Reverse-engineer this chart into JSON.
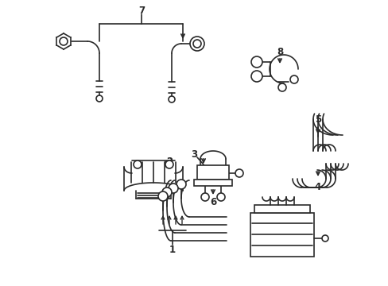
{
  "background_color": "#ffffff",
  "line_color": "#2a2a2a",
  "line_width": 1.2,
  "label_fontsize": 8.5,
  "fig_w": 4.89,
  "fig_h": 3.6,
  "dpi": 100
}
